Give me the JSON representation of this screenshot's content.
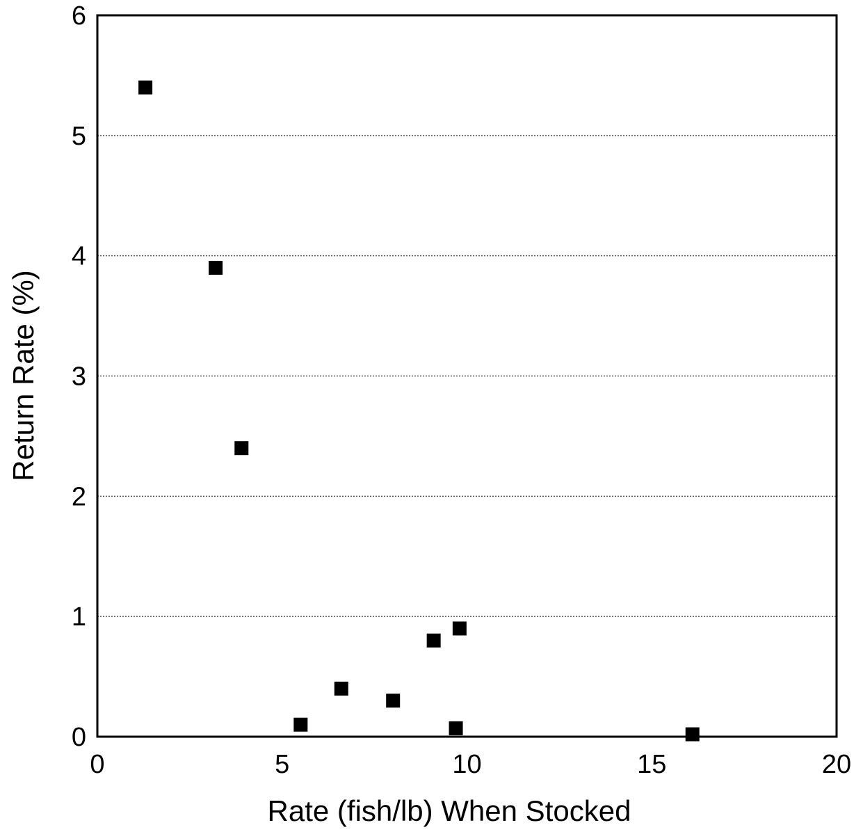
{
  "chart_data": {
    "type": "scatter",
    "title": "",
    "xlabel": "Rate (fish/lb) When Stocked",
    "ylabel": "Return Rate (%)",
    "xlim": [
      0,
      20
    ],
    "ylim": [
      0,
      6
    ],
    "xticks": [
      "0",
      "5",
      "10",
      "15",
      "20"
    ],
    "yticks": [
      "0",
      "1",
      "2",
      "3",
      "4",
      "5",
      "6"
    ],
    "grid": "horizontal dotted",
    "marker": "filled square",
    "marker_color": "#000000",
    "points": [
      {
        "x": 1.3,
        "y": 5.4
      },
      {
        "x": 3.2,
        "y": 3.9
      },
      {
        "x": 3.9,
        "y": 2.4
      },
      {
        "x": 5.5,
        "y": 0.1
      },
      {
        "x": 6.6,
        "y": 0.4
      },
      {
        "x": 8.0,
        "y": 0.3
      },
      {
        "x": 9.1,
        "y": 0.8
      },
      {
        "x": 9.8,
        "y": 0.9
      },
      {
        "x": 9.7,
        "y": 0.07
      },
      {
        "x": 16.1,
        "y": 0.02
      }
    ]
  }
}
